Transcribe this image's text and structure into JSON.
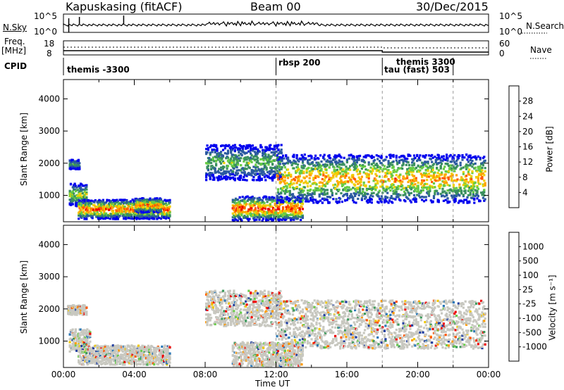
{
  "header": {
    "title_left": "Kapuskasing (fitACF)",
    "title_center": "Beam 00",
    "title_right": "30/Dec/2015"
  },
  "top_panel": {
    "left_label": "N.Sky",
    "left_ticks": [
      "10^5",
      "10^0"
    ],
    "right_label": "N.Search",
    "right_ticks": [
      "10^5",
      "10^0"
    ]
  },
  "freq_panel": {
    "left_label_1": "Freq.",
    "left_label_2": "[MHz]",
    "left_ticks": [
      "18",
      "8"
    ],
    "right_label": "Nave",
    "right_ticks": [
      "60",
      "0"
    ]
  },
  "cpid": {
    "label": "CPID",
    "entries": [
      "themis -3300",
      "rbsp 200",
      "themis 3300",
      "tau (fast) 503"
    ]
  },
  "colors": {
    "power": [
      "#0000ee",
      "#2c5aa0",
      "#3a8f5f",
      "#66cc44",
      "#f0d000",
      "#ffa000",
      "#ff5a00",
      "#ee0000"
    ],
    "velocity": [
      "#1e3ca0",
      "#2a78b8",
      "#3a9a5a",
      "#6acc4a",
      "#c8c8c0",
      "#f0c800",
      "#ff9a00",
      "#ff5500",
      "#ee0000"
    ],
    "ground_scatter": "#c8c8c0"
  },
  "chart_data": [
    {
      "type": "heatmap",
      "panel": "power",
      "xlabel": "",
      "ylabel": "Slant Range [km]",
      "xlim": [
        "00:00",
        "24:00"
      ],
      "ylim": [
        180,
        4600
      ],
      "yticks": [
        "4000",
        "3000",
        "2000",
        "1000"
      ],
      "colorbar": {
        "label": "Power [dB]",
        "ticks": [
          "28",
          "24",
          "20",
          "16",
          "12",
          "8",
          "4"
        ],
        "range": [
          0,
          32
        ]
      },
      "echo_regions": [
        {
          "t_start": 0.3,
          "t_end": 1.3,
          "r_low": 700,
          "r_high": 1400,
          "peak_db": 18
        },
        {
          "t_start": 0.3,
          "t_end": 0.9,
          "r_low": 1850,
          "r_high": 2150,
          "peak_db": 12
        },
        {
          "t_start": 0.8,
          "t_end": 6.0,
          "r_low": 300,
          "r_high": 900,
          "peak_db": 28
        },
        {
          "t_start": 4.0,
          "t_end": 5.5,
          "r_low": 500,
          "r_high": 950,
          "peak_db": 26
        },
        {
          "t_start": 8.0,
          "t_end": 12.3,
          "r_low": 1500,
          "r_high": 2600,
          "peak_db": 14
        },
        {
          "t_start": 9.5,
          "t_end": 13.5,
          "r_low": 250,
          "r_high": 1000,
          "peak_db": 30
        },
        {
          "t_start": 12.0,
          "t_end": 23.8,
          "r_low": 800,
          "r_high": 2300,
          "peak_db": 24
        }
      ]
    },
    {
      "type": "heatmap",
      "panel": "velocity",
      "xlabel": "Time UT",
      "ylabel": "Slant Range [km]",
      "xlim": [
        "00:00",
        "24:00"
      ],
      "ylim": [
        180,
        4600
      ],
      "xticks": [
        "00:00",
        "04:00",
        "08:00",
        "12:00",
        "16:00",
        "20:00",
        "00:00"
      ],
      "yticks": [
        "4000",
        "3000",
        "2000",
        "1000"
      ],
      "colorbar": {
        "label": "Velocity [m s⁻¹]",
        "ticks": [
          "1000",
          "500",
          "100",
          "25",
          "-25",
          "-100",
          "-500",
          "-1000"
        ],
        "range": [
          -1000,
          1000
        ]
      },
      "echo_regions": [
        {
          "t_start": 0.2,
          "t_end": 1.3,
          "r_low": 1850,
          "r_high": 2150,
          "v": 0
        },
        {
          "t_start": 0.3,
          "t_end": 1.5,
          "r_low": 700,
          "r_high": 1400,
          "v": 0
        },
        {
          "t_start": 0.8,
          "t_end": 6.0,
          "r_low": 300,
          "r_high": 900,
          "v": 0
        },
        {
          "t_start": 8.0,
          "t_end": 12.3,
          "r_low": 1500,
          "r_high": 2600,
          "v": 0
        },
        {
          "t_start": 9.5,
          "t_end": 13.5,
          "r_low": 250,
          "r_high": 1000,
          "v": -60
        },
        {
          "t_start": 12.0,
          "t_end": 23.8,
          "r_low": 800,
          "r_high": 2300,
          "v": 0
        }
      ]
    }
  ]
}
